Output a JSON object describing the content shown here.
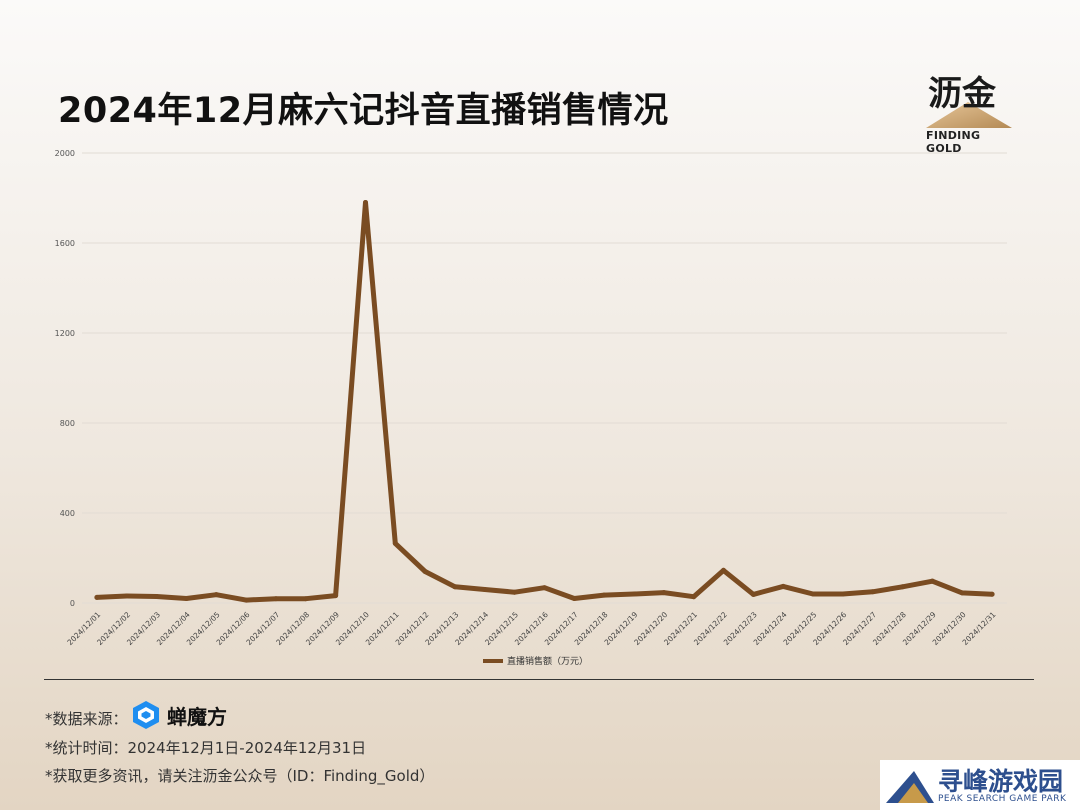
{
  "title": "2024年12月麻六记抖音直播销售情况",
  "logo": {
    "cn": "沥金",
    "en": "FINDING GOLD"
  },
  "chart_data": {
    "type": "line",
    "title": "2024年12月麻六记抖音直播销售情况",
    "xlabel": "",
    "ylabel": "",
    "ylim": [
      0,
      2000
    ],
    "yticks": [
      "0",
      "400",
      "800",
      "1200",
      "1600",
      "2000"
    ],
    "grid": true,
    "legend_position": "bottom-center",
    "line_color": "#7a4c22",
    "categories": [
      "2024/12/01",
      "2024/12/02",
      "2024/12/03",
      "2024/12/04",
      "2024/12/05",
      "2024/12/06",
      "2024/12/07",
      "2024/12/08",
      "2024/12/09",
      "2024/12/10",
      "2024/12/11",
      "2024/12/12",
      "2024/12/13",
      "2024/12/14",
      "2024/12/15",
      "2024/12/16",
      "2024/12/17",
      "2024/12/18",
      "2024/12/19",
      "2024/12/20",
      "2024/12/21",
      "2024/12/22",
      "2024/12/23",
      "2024/12/24",
      "2024/12/25",
      "2024/12/26",
      "2024/12/27",
      "2024/12/28",
      "2024/12/29",
      "2024/12/30",
      "2024/12/31"
    ],
    "series": [
      {
        "name": "直播销售额（万元）",
        "values": [
          25,
          31,
          29,
          20,
          37,
          13,
          19,
          19,
          33,
          1780,
          265,
          140,
          72,
          60,
          48,
          68,
          20,
          35,
          40,
          46,
          28,
          145,
          38,
          74,
          40,
          40,
          50,
          72,
          97,
          45,
          39
        ]
      }
    ]
  },
  "footer": {
    "source_label": "*数据来源：",
    "source_name": "蝉魔方",
    "period": "*统计时间：2024年12月1日-2024年12月31日",
    "follow": "*获取更多资讯，请关注沥金公众号（ID：Finding_Gold）"
  },
  "watermark": {
    "cn": "寻峰游戏园",
    "en": "PEAK SEARCH GAME PARK"
  }
}
